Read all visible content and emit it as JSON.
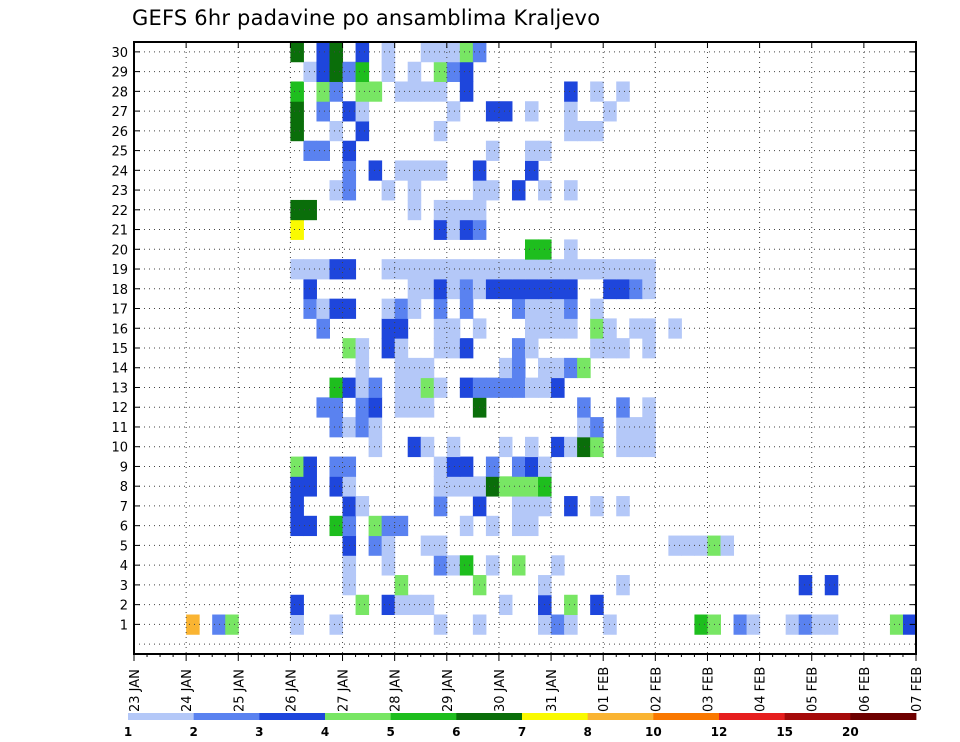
{
  "chart_title": "GEFS 6hr padavine po ansamblima Kraljevo",
  "chart_data": {
    "type": "heatmap",
    "title": "GEFS 6hr padavine po ansamblima Kraljevo",
    "x_tick_labels": [
      "23 JAN",
      "24 JAN",
      "25 JAN",
      "26 JAN",
      "27 JAN",
      "28 JAN",
      "29 JAN",
      "30 JAN",
      "31 JAN",
      "01 FEB",
      "02 FEB",
      "03 FEB",
      "04 FEB",
      "05 FEB",
      "06 FEB",
      "07 FEB"
    ],
    "y_tick_labels": [
      "1",
      "2",
      "3",
      "4",
      "5",
      "6",
      "7",
      "8",
      "9",
      "10",
      "11",
      "12",
      "13",
      "14",
      "15",
      "16",
      "17",
      "18",
      "19",
      "20",
      "21",
      "22",
      "23",
      "24",
      "25",
      "26",
      "27",
      "28",
      "29",
      "30"
    ],
    "x_step": "6hr",
    "grid": true,
    "colorbar": {
      "labels": [
        "1",
        "2",
        "3",
        "4",
        "5",
        "6",
        "7",
        "8",
        "10",
        "12",
        "15",
        "20"
      ],
      "colors": [
        "#b4c8f8",
        "#5a82f0",
        "#1e46dc",
        "#78e664",
        "#1ebe1e",
        "#0a6e0a",
        "#fafa00",
        "#fab432",
        "#fa7800",
        "#e61e1e",
        "#a50a0a",
        "#6e0000"
      ]
    },
    "cells": [
      [
        1,
        4,
        8
      ],
      [
        1,
        6,
        2
      ],
      [
        1,
        7,
        4
      ],
      [
        1,
        12,
        1
      ],
      [
        1,
        15,
        1
      ],
      [
        1,
        23,
        1
      ],
      [
        1,
        26,
        1
      ],
      [
        1,
        31,
        1
      ],
      [
        1,
        32,
        2
      ],
      [
        1,
        33,
        1
      ],
      [
        1,
        36,
        1
      ],
      [
        1,
        43,
        5
      ],
      [
        1,
        44,
        4
      ],
      [
        1,
        46,
        2
      ],
      [
        1,
        47,
        1
      ],
      [
        1,
        50,
        1
      ],
      [
        1,
        51,
        2
      ],
      [
        1,
        52,
        1
      ],
      [
        1,
        53,
        1
      ],
      [
        1,
        58,
        4
      ],
      [
        1,
        59,
        3
      ],
      [
        2,
        12,
        3
      ],
      [
        2,
        17,
        4
      ],
      [
        2,
        19,
        3
      ],
      [
        2,
        20,
        1
      ],
      [
        2,
        21,
        1
      ],
      [
        2,
        22,
        1
      ],
      [
        2,
        28,
        1
      ],
      [
        2,
        31,
        3
      ],
      [
        2,
        33,
        4
      ],
      [
        2,
        35,
        3
      ],
      [
        3,
        16,
        1
      ],
      [
        3,
        20,
        4
      ],
      [
        3,
        26,
        4
      ],
      [
        3,
        31,
        1
      ],
      [
        3,
        37,
        1
      ],
      [
        3,
        51,
        3
      ],
      [
        3,
        53,
        3
      ],
      [
        4,
        16,
        1
      ],
      [
        4,
        19,
        1
      ],
      [
        4,
        23,
        2
      ],
      [
        4,
        24,
        1
      ],
      [
        4,
        25,
        5
      ],
      [
        4,
        27,
        1
      ],
      [
        4,
        29,
        4
      ],
      [
        4,
        32,
        1
      ],
      [
        5,
        16,
        3
      ],
      [
        5,
        18,
        2
      ],
      [
        5,
        19,
        1
      ],
      [
        5,
        22,
        1
      ],
      [
        5,
        23,
        1
      ],
      [
        5,
        41,
        1
      ],
      [
        5,
        42,
        1
      ],
      [
        5,
        43,
        1
      ],
      [
        5,
        44,
        4
      ],
      [
        5,
        45,
        1
      ],
      [
        6,
        12,
        3
      ],
      [
        6,
        13,
        3
      ],
      [
        6,
        15,
        5
      ],
      [
        6,
        16,
        2
      ],
      [
        6,
        18,
        4
      ],
      [
        6,
        19,
        2
      ],
      [
        6,
        20,
        2
      ],
      [
        6,
        25,
        1
      ],
      [
        6,
        27,
        1
      ],
      [
        6,
        29,
        1
      ],
      [
        6,
        30,
        1
      ],
      [
        7,
        12,
        3
      ],
      [
        7,
        16,
        3
      ],
      [
        7,
        17,
        1
      ],
      [
        7,
        23,
        2
      ],
      [
        7,
        26,
        3
      ],
      [
        7,
        29,
        1
      ],
      [
        7,
        30,
        1
      ],
      [
        7,
        31,
        1
      ],
      [
        7,
        33,
        3
      ],
      [
        7,
        35,
        1
      ],
      [
        7,
        37,
        1
      ],
      [
        8,
        12,
        3
      ],
      [
        8,
        13,
        3
      ],
      [
        8,
        15,
        3
      ],
      [
        8,
        16,
        1
      ],
      [
        8,
        23,
        1
      ],
      [
        8,
        24,
        1
      ],
      [
        8,
        25,
        1
      ],
      [
        8,
        26,
        1
      ],
      [
        8,
        27,
        6
      ],
      [
        8,
        28,
        4
      ],
      [
        8,
        29,
        4
      ],
      [
        8,
        30,
        4
      ],
      [
        8,
        31,
        5
      ],
      [
        9,
        12,
        4
      ],
      [
        9,
        13,
        3
      ],
      [
        9,
        15,
        2
      ],
      [
        9,
        16,
        2
      ],
      [
        9,
        23,
        1
      ],
      [
        9,
        24,
        3
      ],
      [
        9,
        25,
        3
      ],
      [
        9,
        27,
        2
      ],
      [
        9,
        29,
        2
      ],
      [
        9,
        30,
        3
      ],
      [
        9,
        31,
        1
      ],
      [
        10,
        18,
        1
      ],
      [
        10,
        21,
        3
      ],
      [
        10,
        22,
        1
      ],
      [
        10,
        24,
        1
      ],
      [
        10,
        28,
        1
      ],
      [
        10,
        30,
        1
      ],
      [
        10,
        32,
        3
      ],
      [
        10,
        33,
        1
      ],
      [
        10,
        34,
        6
      ],
      [
        10,
        35,
        4
      ],
      [
        10,
        37,
        1
      ],
      [
        10,
        38,
        1
      ],
      [
        10,
        39,
        1
      ],
      [
        11,
        15,
        2
      ],
      [
        11,
        16,
        1
      ],
      [
        11,
        17,
        2
      ],
      [
        11,
        18,
        1
      ],
      [
        11,
        34,
        1
      ],
      [
        11,
        35,
        2
      ],
      [
        11,
        37,
        1
      ],
      [
        11,
        38,
        1
      ],
      [
        11,
        39,
        1
      ],
      [
        12,
        14,
        2
      ],
      [
        12,
        15,
        2
      ],
      [
        12,
        17,
        2
      ],
      [
        12,
        18,
        3
      ],
      [
        12,
        20,
        1
      ],
      [
        12,
        21,
        1
      ],
      [
        12,
        22,
        1
      ],
      [
        12,
        26,
        6
      ],
      [
        12,
        34,
        2
      ],
      [
        12,
        37,
        2
      ],
      [
        12,
        39,
        1
      ],
      [
        13,
        15,
        5
      ],
      [
        13,
        16,
        3
      ],
      [
        13,
        17,
        1
      ],
      [
        13,
        18,
        2
      ],
      [
        13,
        20,
        1
      ],
      [
        13,
        21,
        1
      ],
      [
        13,
        22,
        4
      ],
      [
        13,
        23,
        1
      ],
      [
        13,
        25,
        3
      ],
      [
        13,
        26,
        2
      ],
      [
        13,
        27,
        2
      ],
      [
        13,
        28,
        2
      ],
      [
        13,
        29,
        2
      ],
      [
        13,
        30,
        1
      ],
      [
        13,
        31,
        1
      ],
      [
        13,
        32,
        3
      ],
      [
        14,
        17,
        1
      ],
      [
        14,
        20,
        1
      ],
      [
        14,
        21,
        1
      ],
      [
        14,
        22,
        1
      ],
      [
        14,
        28,
        1
      ],
      [
        14,
        29,
        2
      ],
      [
        14,
        31,
        1
      ],
      [
        14,
        32,
        1
      ],
      [
        14,
        33,
        2
      ],
      [
        14,
        34,
        4
      ],
      [
        15,
        16,
        4
      ],
      [
        15,
        17,
        1
      ],
      [
        15,
        19,
        3
      ],
      [
        15,
        20,
        1
      ],
      [
        15,
        23,
        1
      ],
      [
        15,
        24,
        1
      ],
      [
        15,
        25,
        3
      ],
      [
        15,
        29,
        2
      ],
      [
        15,
        30,
        1
      ],
      [
        15,
        35,
        1
      ],
      [
        15,
        36,
        1
      ],
      [
        15,
        37,
        1
      ],
      [
        15,
        39,
        1
      ],
      [
        16,
        14,
        2
      ],
      [
        16,
        19,
        3
      ],
      [
        16,
        20,
        3
      ],
      [
        16,
        23,
        1
      ],
      [
        16,
        24,
        1
      ],
      [
        16,
        26,
        1
      ],
      [
        16,
        30,
        1
      ],
      [
        16,
        31,
        1
      ],
      [
        16,
        32,
        1
      ],
      [
        16,
        33,
        1
      ],
      [
        16,
        35,
        4
      ],
      [
        16,
        36,
        1
      ],
      [
        16,
        38,
        1
      ],
      [
        16,
        39,
        1
      ],
      [
        16,
        41,
        1
      ],
      [
        17,
        13,
        2
      ],
      [
        17,
        14,
        1
      ],
      [
        17,
        15,
        3
      ],
      [
        17,
        16,
        3
      ],
      [
        17,
        19,
        1
      ],
      [
        17,
        20,
        2
      ],
      [
        17,
        21,
        1
      ],
      [
        17,
        23,
        2
      ],
      [
        17,
        25,
        2
      ],
      [
        17,
        29,
        2
      ],
      [
        17,
        30,
        1
      ],
      [
        17,
        31,
        1
      ],
      [
        17,
        32,
        1
      ],
      [
        17,
        33,
        2
      ],
      [
        17,
        35,
        1
      ],
      [
        18,
        13,
        3
      ],
      [
        18,
        21,
        1
      ],
      [
        18,
        22,
        1
      ],
      [
        18,
        23,
        3
      ],
      [
        18,
        24,
        1
      ],
      [
        18,
        25,
        2
      ],
      [
        18,
        26,
        1
      ],
      [
        18,
        27,
        3
      ],
      [
        18,
        28,
        3
      ],
      [
        18,
        29,
        3
      ],
      [
        18,
        30,
        3
      ],
      [
        18,
        31,
        3
      ],
      [
        18,
        32,
        3
      ],
      [
        18,
        33,
        3
      ],
      [
        18,
        36,
        3
      ],
      [
        18,
        37,
        3
      ],
      [
        18,
        38,
        2
      ],
      [
        18,
        39,
        1
      ],
      [
        19,
        12,
        1
      ],
      [
        19,
        13,
        1
      ],
      [
        19,
        14,
        1
      ],
      [
        19,
        15,
        3
      ],
      [
        19,
        16,
        3
      ],
      [
        19,
        19,
        1
      ],
      [
        19,
        20,
        1
      ],
      [
        19,
        21,
        1
      ],
      [
        19,
        22,
        1
      ],
      [
        19,
        23,
        1
      ],
      [
        19,
        24,
        1
      ],
      [
        19,
        25,
        1
      ],
      [
        19,
        26,
        1
      ],
      [
        19,
        27,
        1
      ],
      [
        19,
        28,
        1
      ],
      [
        19,
        29,
        1
      ],
      [
        19,
        30,
        1
      ],
      [
        19,
        31,
        1
      ],
      [
        19,
        32,
        1
      ],
      [
        19,
        33,
        1
      ],
      [
        19,
        34,
        1
      ],
      [
        19,
        35,
        1
      ],
      [
        19,
        36,
        1
      ],
      [
        19,
        37,
        1
      ],
      [
        19,
        38,
        1
      ],
      [
        19,
        39,
        1
      ]
    ],
    "cells_b": [
      [
        20,
        30,
        5
      ],
      [
        20,
        31,
        5
      ],
      [
        20,
        33,
        1
      ],
      [
        21,
        12,
        7
      ],
      [
        21,
        23,
        3
      ],
      [
        21,
        24,
        1
      ],
      [
        21,
        25,
        3
      ],
      [
        21,
        26,
        2
      ],
      [
        22,
        12,
        6
      ],
      [
        22,
        13,
        6
      ],
      [
        22,
        21,
        1
      ],
      [
        22,
        23,
        1
      ],
      [
        22,
        24,
        1
      ],
      [
        22,
        25,
        1
      ],
      [
        22,
        26,
        1
      ],
      [
        23,
        15,
        1
      ],
      [
        23,
        16,
        2
      ],
      [
        23,
        19,
        1
      ],
      [
        23,
        21,
        1
      ],
      [
        23,
        26,
        1
      ],
      [
        23,
        27,
        1
      ],
      [
        23,
        29,
        3
      ],
      [
        23,
        31,
        1
      ],
      [
        23,
        33,
        1
      ],
      [
        24,
        16,
        2
      ],
      [
        24,
        18,
        3
      ],
      [
        24,
        20,
        1
      ],
      [
        24,
        21,
        1
      ],
      [
        24,
        22,
        1
      ],
      [
        24,
        23,
        1
      ],
      [
        24,
        26,
        3
      ],
      [
        24,
        30,
        3
      ],
      [
        25,
        13,
        2
      ],
      [
        25,
        14,
        2
      ],
      [
        25,
        16,
        3
      ],
      [
        25,
        27,
        1
      ],
      [
        25,
        30,
        1
      ],
      [
        25,
        31,
        1
      ],
      [
        26,
        12,
        6
      ],
      [
        26,
        15,
        1
      ],
      [
        26,
        17,
        3
      ],
      [
        26,
        23,
        1
      ],
      [
        26,
        33,
        1
      ],
      [
        26,
        34,
        1
      ],
      [
        26,
        35,
        1
      ],
      [
        27,
        12,
        6
      ],
      [
        27,
        14,
        2
      ],
      [
        27,
        16,
        3
      ],
      [
        27,
        17,
        1
      ],
      [
        27,
        24,
        1
      ],
      [
        27,
        27,
        3
      ],
      [
        27,
        28,
        3
      ],
      [
        27,
        30,
        1
      ],
      [
        27,
        33,
        1
      ],
      [
        27,
        36,
        1
      ],
      [
        28,
        12,
        5
      ],
      [
        28,
        14,
        4
      ],
      [
        28,
        15,
        2
      ],
      [
        28,
        17,
        4
      ],
      [
        28,
        18,
        4
      ],
      [
        28,
        20,
        1
      ],
      [
        28,
        21,
        1
      ],
      [
        28,
        22,
        1
      ],
      [
        28,
        23,
        1
      ],
      [
        28,
        25,
        3
      ],
      [
        28,
        33,
        3
      ],
      [
        28,
        35,
        1
      ],
      [
        28,
        37,
        1
      ],
      [
        29,
        13,
        1
      ],
      [
        29,
        14,
        3
      ],
      [
        29,
        15,
        6
      ],
      [
        29,
        16,
        2
      ],
      [
        29,
        17,
        5
      ],
      [
        29,
        19,
        1
      ],
      [
        29,
        21,
        1
      ],
      [
        29,
        23,
        4
      ],
      [
        29,
        24,
        2
      ],
      [
        29,
        25,
        3
      ],
      [
        30,
        12,
        6
      ],
      [
        30,
        14,
        3
      ],
      [
        30,
        15,
        6
      ],
      [
        30,
        17,
        3
      ],
      [
        30,
        19,
        1
      ],
      [
        30,
        22,
        1
      ],
      [
        30,
        23,
        1
      ],
      [
        30,
        24,
        1
      ],
      [
        30,
        25,
        4
      ],
      [
        30,
        26,
        2
      ]
    ]
  }
}
